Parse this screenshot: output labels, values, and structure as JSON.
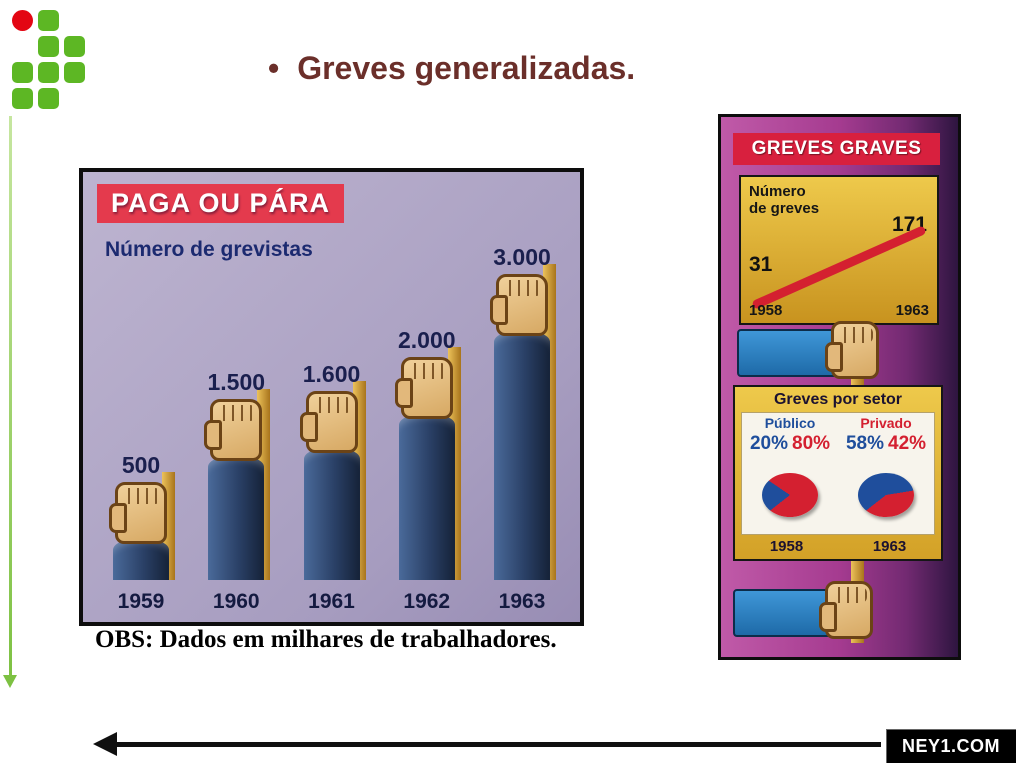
{
  "slide": {
    "bullet": "•",
    "title": "Greves generalizadas.",
    "caption": "OBS: Dados em milhares de trabalhadores.",
    "brand": "NEY1.COM"
  },
  "colors": {
    "title_text": "#6b2f2a",
    "logo_green": "#5db724",
    "logo_red": "#e30613",
    "banner_red": "#e43a4d",
    "panel_gold": "#eec94b",
    "panel_purple": "#a53b90",
    "bar_blue": "#2a4066",
    "publico_blue": "#1f4e9c",
    "privado_red": "#d42030",
    "arrow_green": "#7dc142"
  },
  "paga_chart": {
    "banner": "PAGA OU PÁRA",
    "subtitle": "Número de grevistas",
    "bars": [
      {
        "year": "1959",
        "label": "500",
        "value": 500
      },
      {
        "year": "1960",
        "label": "1.500",
        "value": 1500
      },
      {
        "year": "1961",
        "label": "1.600",
        "value": 1600
      },
      {
        "year": "1962",
        "label": "2.000",
        "value": 2000
      },
      {
        "year": "1963",
        "label": "3.000",
        "value": 3000
      }
    ]
  },
  "greves_panel": {
    "banner": "GREVES GRAVES",
    "line_chart": {
      "title": "Número de greves",
      "start_value": "31",
      "end_value": "171",
      "start_year": "1958",
      "end_year": "1963"
    },
    "sector": {
      "title": "Greves por setor",
      "headers": {
        "publico": "Público",
        "privado": "Privado"
      },
      "columns": [
        {
          "year": "1958",
          "publico": "20%",
          "privado": "80%"
        },
        {
          "year": "1963",
          "publico": "58%",
          "privado": "42%"
        }
      ]
    }
  },
  "chart_data": [
    {
      "type": "bar",
      "title": "PAGA OU PÁRA — Número de grevistas",
      "categories": [
        "1959",
        "1960",
        "1961",
        "1962",
        "1963"
      ],
      "values": [
        500,
        1500,
        1600,
        2000,
        3000
      ],
      "unit": "milhares de trabalhadores",
      "ylim": [
        0,
        3000
      ]
    },
    {
      "type": "line",
      "title": "Número de greves",
      "x": [
        "1958",
        "1963"
      ],
      "values": [
        31,
        171
      ]
    },
    {
      "type": "pie",
      "title": "Greves por setor — 1958",
      "labels": [
        "Público",
        "Privado"
      ],
      "values": [
        20,
        80
      ],
      "colors": [
        "#1f4e9c",
        "#d42030"
      ]
    },
    {
      "type": "pie",
      "title": "Greves por setor — 1963",
      "labels": [
        "Público",
        "Privado"
      ],
      "values": [
        58,
        42
      ],
      "colors": [
        "#1f4e9c",
        "#d42030"
      ]
    }
  ]
}
